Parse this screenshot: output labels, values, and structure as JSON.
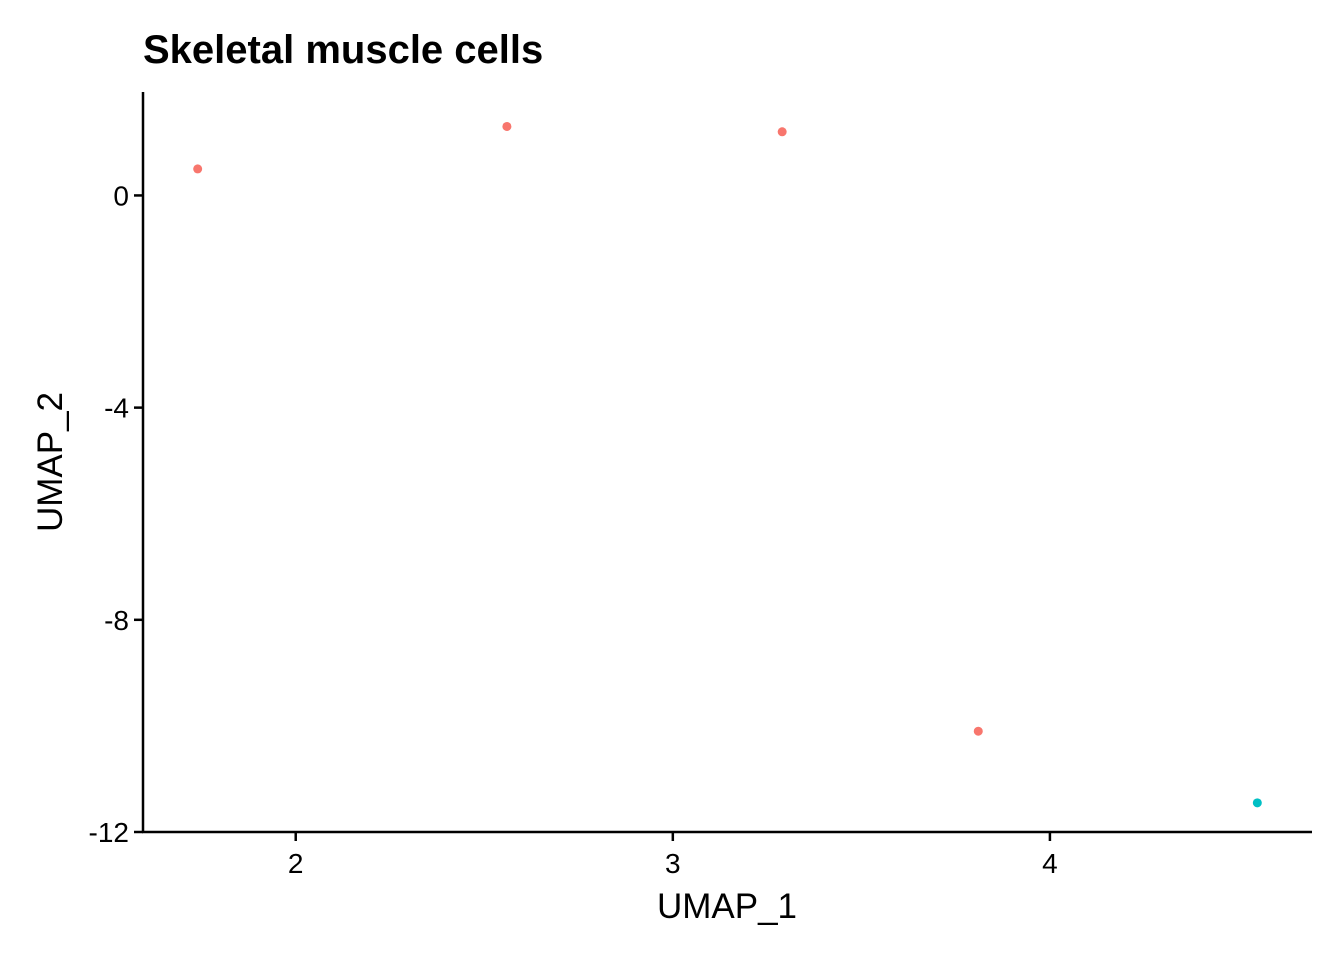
{
  "chart_data": {
    "type": "scatter",
    "title": "Skeletal muscle cells",
    "xlabel": "UMAP_1",
    "ylabel": "UMAP_2",
    "xlim": [
      1.595,
      4.695
    ],
    "ylim": [
      -12.0,
      1.95
    ],
    "xticks": [
      2,
      3,
      4
    ],
    "xtick_labels": [
      "2",
      "3",
      "4"
    ],
    "yticks": [
      0,
      -4,
      -8,
      -12
    ],
    "ytick_labels": [
      "0",
      "-4",
      "-8",
      "-12"
    ],
    "grid": false,
    "legend": "none",
    "series": [
      {
        "color": "#F8766D",
        "points": [
          {
            "x": 1.74,
            "y": 0.5
          },
          {
            "x": 2.56,
            "y": 1.3
          },
          {
            "x": 3.29,
            "y": 1.2
          },
          {
            "x": 3.81,
            "y": -10.1
          }
        ]
      },
      {
        "color": "#00BFC4",
        "points": [
          {
            "x": 4.55,
            "y": -11.45
          }
        ]
      }
    ]
  }
}
